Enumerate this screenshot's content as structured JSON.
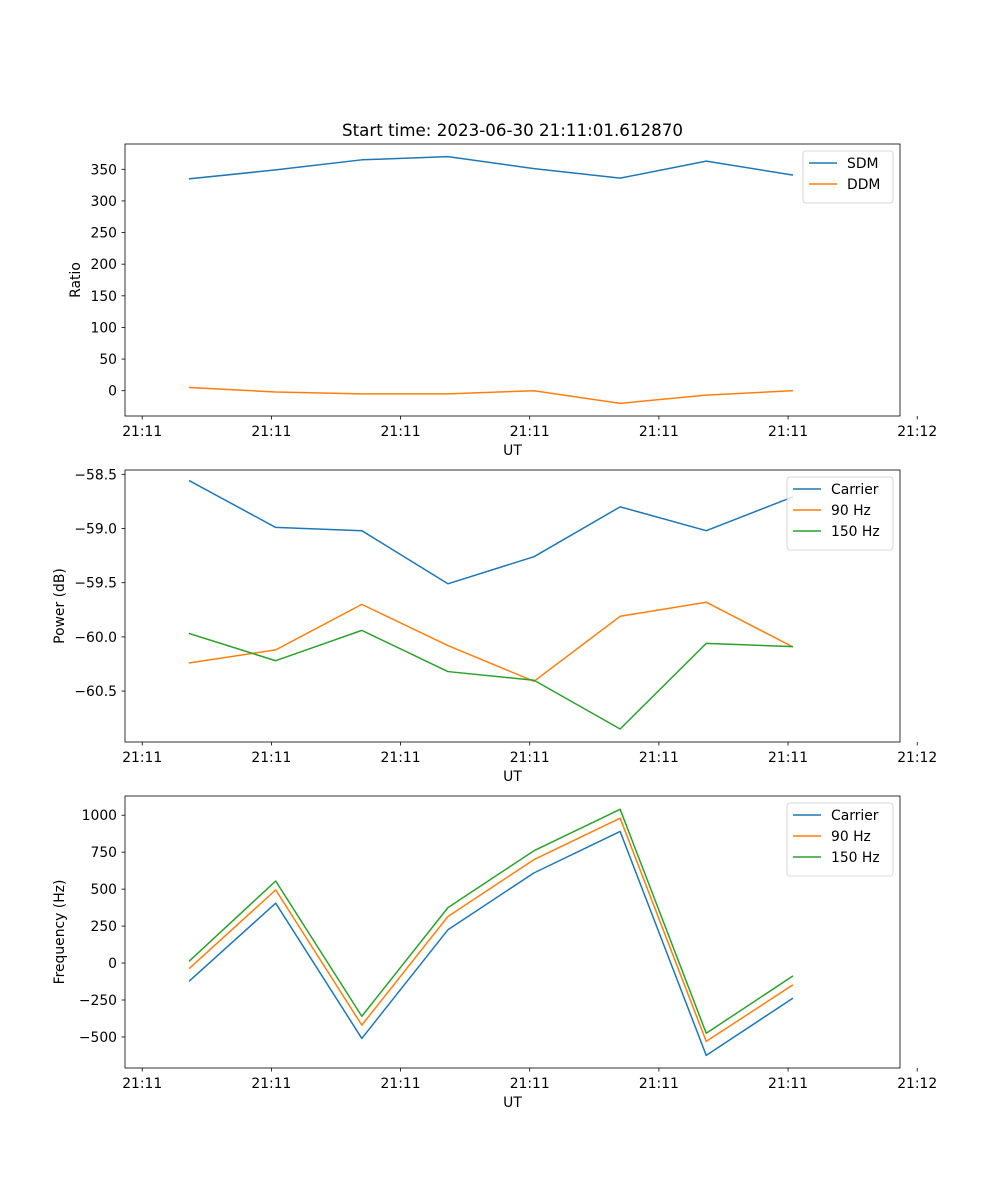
{
  "figure": {
    "title": "Start time: 2023-06-30 21:11:01.612870"
  },
  "colors": {
    "blue": "#1f77b4",
    "orange": "#ff7f0e",
    "green": "#2ca02c"
  },
  "chart_data": [
    {
      "type": "line",
      "title": "Start time: 2023-06-30 21:11:01.612870",
      "xlabel": "UT",
      "ylabel": "Ratio",
      "x": [
        1,
        2,
        3,
        4,
        5,
        6,
        7,
        8
      ],
      "xlim": [
        0.25,
        9.25
      ],
      "xticks": [
        0.45,
        1.95,
        3.45,
        4.95,
        6.45,
        7.95,
        9.45
      ],
      "xtick_labels": [
        "21:11",
        "21:11",
        "21:11",
        "21:11",
        "21:11",
        "21:11",
        "21:12"
      ],
      "ylim": [
        -40,
        390
      ],
      "yticks": [
        0,
        50,
        100,
        150,
        200,
        250,
        300,
        350
      ],
      "ytick_labels": [
        "0",
        "50",
        "100",
        "150",
        "200",
        "250",
        "300",
        "350"
      ],
      "grid": false,
      "legend": "top-right",
      "series": [
        {
          "name": "SDM",
          "color": "#1f77b4",
          "values": [
            335,
            349,
            365,
            370,
            351,
            336,
            363,
            341
          ]
        },
        {
          "name": "DDM",
          "color": "#ff7f0e",
          "values": [
            5,
            -2,
            -5,
            -5,
            0,
            -20,
            -7,
            0
          ]
        }
      ]
    },
    {
      "type": "line",
      "title": "",
      "xlabel": "UT",
      "ylabel": "Power (dB)",
      "x": [
        1,
        2,
        3,
        4,
        5,
        6,
        7,
        8
      ],
      "xlim": [
        0.25,
        9.25
      ],
      "xticks": [
        0.45,
        1.95,
        3.45,
        4.95,
        6.45,
        7.95,
        9.45
      ],
      "xtick_labels": [
        "21:11",
        "21:11",
        "21:11",
        "21:11",
        "21:11",
        "21:11",
        "21:12"
      ],
      "ylim": [
        -60.97,
        -58.46
      ],
      "yticks": [
        -60.5,
        -60.0,
        -59.5,
        -59.0,
        -58.5
      ],
      "ytick_labels": [
        "−60.5",
        "−60.0",
        "−59.5",
        "−59.0",
        "−58.5"
      ],
      "grid": false,
      "legend": "top-right",
      "series": [
        {
          "name": "Carrier",
          "color": "#1f77b4",
          "values": [
            -58.56,
            -58.99,
            -59.02,
            -59.51,
            -59.26,
            -58.8,
            -59.02,
            -58.71
          ]
        },
        {
          "name": "90 Hz",
          "color": "#ff7f0e",
          "values": [
            -60.24,
            -60.12,
            -59.7,
            -60.08,
            -60.41,
            -59.81,
            -59.68,
            -60.09
          ]
        },
        {
          "name": "150 Hz",
          "color": "#2ca02c",
          "values": [
            -59.97,
            -60.22,
            -59.94,
            -60.32,
            -60.4,
            -60.85,
            -60.06,
            -60.09
          ]
        }
      ]
    },
    {
      "type": "line",
      "title": "",
      "xlabel": "UT",
      "ylabel": "Frequency (Hz)",
      "x": [
        1,
        2,
        3,
        4,
        5,
        6,
        7,
        8
      ],
      "xlim": [
        0.25,
        9.25
      ],
      "xticks": [
        0.45,
        1.95,
        3.45,
        4.95,
        6.45,
        7.95,
        9.45
      ],
      "xtick_labels": [
        "21:11",
        "21:11",
        "21:11",
        "21:11",
        "21:11",
        "21:11",
        "21:12"
      ],
      "ylim": [
        -710,
        1130
      ],
      "yticks": [
        -500,
        -250,
        0,
        250,
        500,
        750,
        1000
      ],
      "ytick_labels": [
        "−500",
        "−250",
        "0",
        "250",
        "500",
        "750",
        "1000"
      ],
      "grid": false,
      "legend": "top-right",
      "series": [
        {
          "name": "Carrier",
          "color": "#1f77b4",
          "values": [
            -120,
            405,
            -510,
            225,
            610,
            890,
            -625,
            -240
          ]
        },
        {
          "name": "90 Hz",
          "color": "#ff7f0e",
          "values": [
            -35,
            495,
            -420,
            315,
            700,
            980,
            -530,
            -150
          ]
        },
        {
          "name": "150 Hz",
          "color": "#2ca02c",
          "values": [
            15,
            555,
            -360,
            375,
            760,
            1040,
            -475,
            -90
          ]
        }
      ]
    }
  ]
}
